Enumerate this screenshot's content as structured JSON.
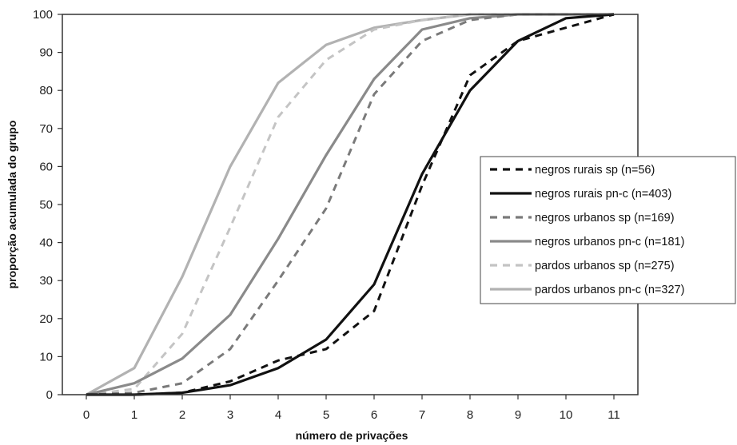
{
  "chart_data": {
    "type": "line",
    "x": [
      0,
      1,
      2,
      3,
      4,
      5,
      6,
      7,
      8,
      9,
      10,
      11
    ],
    "xlabel": "número de privações",
    "ylabel": "proporção acumulada do grupo",
    "xlim": [
      0,
      11
    ],
    "ylim": [
      0,
      100
    ],
    "yticks": [
      0,
      10,
      20,
      30,
      40,
      50,
      60,
      70,
      80,
      90,
      100
    ],
    "xticks": [
      0,
      1,
      2,
      3,
      4,
      5,
      6,
      7,
      8,
      9,
      10,
      11
    ],
    "grid": false,
    "legend_position": "right",
    "series": [
      {
        "name": "negros rurais sp (n=56)",
        "color": "#111111",
        "dashed": true,
        "values": [
          0,
          0,
          0.5,
          3.5,
          9,
          12,
          22,
          55,
          84,
          93,
          96.5,
          100
        ]
      },
      {
        "name": "negros rurais pn-c (n=403)",
        "color": "#111111",
        "dashed": false,
        "values": [
          0,
          0,
          0.5,
          2.5,
          7,
          14.5,
          29,
          58,
          80,
          93,
          99,
          100
        ]
      },
      {
        "name": "negros urbanos sp (n=169)",
        "color": "#7a7a7a",
        "dashed": true,
        "values": [
          0,
          0.5,
          3,
          12,
          30,
          49,
          79,
          93,
          98.5,
          100,
          100,
          100
        ]
      },
      {
        "name": "negros urbanos pn-c (n=181)",
        "color": "#8a8a8a",
        "dashed": false,
        "values": [
          0,
          3,
          9.5,
          21,
          41,
          63,
          83,
          96,
          99,
          100,
          100,
          100
        ]
      },
      {
        "name": "pardos urbanos sp (n=275)",
        "color": "#c4c4c4",
        "dashed": true,
        "values": [
          0,
          1.5,
          16,
          44,
          73,
          88,
          96,
          98.5,
          100,
          100,
          100,
          100
        ]
      },
      {
        "name": "pardos urbanos pn-c (n=327)",
        "color": "#b2b2b2",
        "dashed": false,
        "values": [
          0,
          7,
          31,
          60,
          82,
          92,
          96.5,
          98.5,
          100,
          100,
          100,
          100
        ]
      }
    ]
  }
}
